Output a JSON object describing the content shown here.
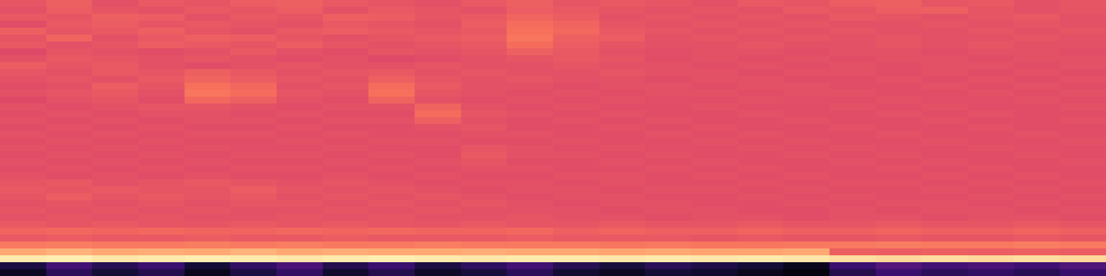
{
  "chart_data": {
    "type": "heatmap",
    "color": "magma",
    "tick_labels": false,
    "zlim": [
      0,
      1
    ],
    "cells": [
      [
        0.63,
        0.66,
        0.62,
        0.64,
        0.63,
        0.65,
        0.66,
        0.64,
        0.63,
        0.62,
        0.64,
        0.66,
        0.63,
        0.64,
        0.63,
        0.62,
        0.64,
        0.63,
        0.65,
        0.66,
        0.63,
        0.64,
        0.62,
        0.63
      ],
      [
        0.62,
        0.65,
        0.63,
        0.62,
        0.64,
        0.63,
        0.65,
        0.62,
        0.64,
        0.63,
        0.62,
        0.65,
        0.64,
        0.63,
        0.62,
        0.63,
        0.62,
        0.64,
        0.63,
        0.65,
        0.66,
        0.63,
        0.62,
        0.63
      ],
      [
        0.64,
        0.63,
        0.66,
        0.65,
        0.62,
        0.64,
        0.63,
        0.66,
        0.65,
        0.63,
        0.64,
        0.67,
        0.65,
        0.62,
        0.63,
        0.62,
        0.63,
        0.62,
        0.64,
        0.63,
        0.62,
        0.63,
        0.64,
        0.62
      ],
      [
        0.61,
        0.64,
        0.65,
        0.63,
        0.64,
        0.63,
        0.62,
        0.64,
        0.63,
        0.62,
        0.65,
        0.69,
        0.67,
        0.63,
        0.62,
        0.63,
        0.62,
        0.63,
        0.62,
        0.62,
        0.63,
        0.62,
        0.63,
        0.62
      ],
      [
        0.66,
        0.63,
        0.64,
        0.66,
        0.63,
        0.62,
        0.64,
        0.65,
        0.64,
        0.63,
        0.64,
        0.7,
        0.68,
        0.64,
        0.63,
        0.62,
        0.63,
        0.62,
        0.63,
        0.62,
        0.62,
        0.63,
        0.62,
        0.63
      ],
      [
        0.63,
        0.67,
        0.62,
        0.64,
        0.66,
        0.65,
        0.63,
        0.62,
        0.63,
        0.64,
        0.65,
        0.71,
        0.66,
        0.65,
        0.62,
        0.63,
        0.62,
        0.63,
        0.62,
        0.63,
        0.62,
        0.62,
        0.63,
        0.62
      ],
      [
        0.64,
        0.62,
        0.63,
        0.65,
        0.64,
        0.63,
        0.65,
        0.63,
        0.62,
        0.63,
        0.64,
        0.69,
        0.65,
        0.63,
        0.62,
        0.62,
        0.63,
        0.62,
        0.62,
        0.63,
        0.62,
        0.63,
        0.62,
        0.62
      ],
      [
        0.6,
        0.63,
        0.62,
        0.61,
        0.62,
        0.64,
        0.62,
        0.61,
        0.63,
        0.62,
        0.63,
        0.66,
        0.64,
        0.62,
        0.61,
        0.62,
        0.62,
        0.61,
        0.62,
        0.62,
        0.61,
        0.62,
        0.62,
        0.61
      ],
      [
        0.62,
        0.64,
        0.63,
        0.62,
        0.63,
        0.62,
        0.61,
        0.62,
        0.6,
        0.61,
        0.62,
        0.63,
        0.64,
        0.63,
        0.61,
        0.62,
        0.61,
        0.62,
        0.61,
        0.62,
        0.62,
        0.61,
        0.62,
        0.62
      ],
      [
        0.65,
        0.63,
        0.64,
        0.62,
        0.61,
        0.62,
        0.63,
        0.62,
        0.62,
        0.63,
        0.62,
        0.62,
        0.63,
        0.62,
        0.62,
        0.61,
        0.62,
        0.61,
        0.62,
        0.61,
        0.62,
        0.62,
        0.61,
        0.62
      ],
      [
        0.63,
        0.62,
        0.64,
        0.63,
        0.66,
        0.64,
        0.62,
        0.63,
        0.64,
        0.62,
        0.63,
        0.62,
        0.62,
        0.63,
        0.62,
        0.62,
        0.61,
        0.62,
        0.62,
        0.61,
        0.62,
        0.61,
        0.62,
        0.61
      ],
      [
        0.62,
        0.63,
        0.62,
        0.64,
        0.67,
        0.65,
        0.63,
        0.62,
        0.66,
        0.63,
        0.62,
        0.63,
        0.62,
        0.62,
        0.61,
        0.62,
        0.62,
        0.61,
        0.61,
        0.62,
        0.61,
        0.62,
        0.61,
        0.62
      ],
      [
        0.61,
        0.62,
        0.65,
        0.63,
        0.7,
        0.68,
        0.62,
        0.63,
        0.69,
        0.64,
        0.62,
        0.62,
        0.61,
        0.62,
        0.62,
        0.61,
        0.62,
        0.62,
        0.61,
        0.61,
        0.62,
        0.61,
        0.62,
        0.61
      ],
      [
        0.62,
        0.63,
        0.64,
        0.62,
        0.71,
        0.69,
        0.63,
        0.62,
        0.7,
        0.63,
        0.62,
        0.61,
        0.62,
        0.61,
        0.62,
        0.62,
        0.61,
        0.62,
        0.62,
        0.61,
        0.61,
        0.62,
        0.61,
        0.62
      ],
      [
        0.6,
        0.62,
        0.63,
        0.61,
        0.68,
        0.66,
        0.62,
        0.61,
        0.67,
        0.62,
        0.61,
        0.62,
        0.61,
        0.62,
        0.61,
        0.61,
        0.62,
        0.61,
        0.61,
        0.62,
        0.61,
        0.61,
        0.62,
        0.61
      ],
      [
        0.62,
        0.61,
        0.62,
        0.63,
        0.63,
        0.62,
        0.61,
        0.62,
        0.62,
        0.67,
        0.62,
        0.61,
        0.62,
        0.61,
        0.61,
        0.62,
        0.61,
        0.61,
        0.62,
        0.61,
        0.62,
        0.61,
        0.61,
        0.62
      ],
      [
        0.61,
        0.62,
        0.61,
        0.62,
        0.62,
        0.61,
        0.62,
        0.61,
        0.61,
        0.69,
        0.63,
        0.62,
        0.61,
        0.62,
        0.61,
        0.61,
        0.62,
        0.61,
        0.61,
        0.62,
        0.61,
        0.62,
        0.61,
        0.61
      ],
      [
        0.62,
        0.61,
        0.62,
        0.61,
        0.62,
        0.62,
        0.61,
        0.62,
        0.62,
        0.66,
        0.62,
        0.61,
        0.62,
        0.61,
        0.62,
        0.61,
        0.61,
        0.62,
        0.61,
        0.61,
        0.62,
        0.61,
        0.61,
        0.62
      ],
      [
        0.61,
        0.62,
        0.61,
        0.62,
        0.61,
        0.61,
        0.62,
        0.61,
        0.61,
        0.62,
        0.63,
        0.61,
        0.61,
        0.62,
        0.61,
        0.62,
        0.61,
        0.61,
        0.62,
        0.61,
        0.61,
        0.62,
        0.61,
        0.61
      ],
      [
        0.62,
        0.61,
        0.62,
        0.61,
        0.62,
        0.62,
        0.61,
        0.62,
        0.61,
        0.61,
        0.62,
        0.62,
        0.61,
        0.61,
        0.62,
        0.61,
        0.62,
        0.61,
        0.61,
        0.62,
        0.61,
        0.61,
        0.62,
        0.61
      ],
      [
        0.61,
        0.62,
        0.61,
        0.62,
        0.61,
        0.61,
        0.62,
        0.61,
        0.62,
        0.62,
        0.61,
        0.61,
        0.62,
        0.61,
        0.61,
        0.62,
        0.61,
        0.62,
        0.61,
        0.61,
        0.62,
        0.61,
        0.61,
        0.62
      ],
      [
        0.62,
        0.61,
        0.62,
        0.61,
        0.62,
        0.61,
        0.61,
        0.62,
        0.61,
        0.61,
        0.63,
        0.62,
        0.61,
        0.62,
        0.61,
        0.61,
        0.62,
        0.61,
        0.62,
        0.61,
        0.61,
        0.62,
        0.61,
        0.61
      ],
      [
        0.61,
        0.62,
        0.61,
        0.62,
        0.61,
        0.62,
        0.62,
        0.61,
        0.62,
        0.61,
        0.64,
        0.62,
        0.62,
        0.61,
        0.62,
        0.61,
        0.61,
        0.62,
        0.61,
        0.62,
        0.61,
        0.61,
        0.62,
        0.61
      ],
      [
        0.62,
        0.61,
        0.62,
        0.61,
        0.62,
        0.61,
        0.61,
        0.62,
        0.61,
        0.62,
        0.63,
        0.61,
        0.61,
        0.62,
        0.61,
        0.62,
        0.61,
        0.61,
        0.62,
        0.61,
        0.62,
        0.61,
        0.61,
        0.62
      ],
      [
        0.61,
        0.62,
        0.61,
        0.62,
        0.61,
        0.62,
        0.62,
        0.61,
        0.62,
        0.61,
        0.62,
        0.62,
        0.61,
        0.61,
        0.62,
        0.61,
        0.62,
        0.61,
        0.61,
        0.62,
        0.61,
        0.62,
        0.61,
        0.61
      ],
      [
        0.62,
        0.61,
        0.62,
        0.61,
        0.62,
        0.61,
        0.61,
        0.62,
        0.61,
        0.62,
        0.61,
        0.61,
        0.62,
        0.62,
        0.61,
        0.62,
        0.61,
        0.62,
        0.61,
        0.61,
        0.62,
        0.61,
        0.62,
        0.61
      ],
      [
        0.63,
        0.64,
        0.62,
        0.63,
        0.64,
        0.63,
        0.62,
        0.63,
        0.62,
        0.61,
        0.62,
        0.62,
        0.61,
        0.62,
        0.61,
        0.61,
        0.62,
        0.61,
        0.62,
        0.62,
        0.61,
        0.62,
        0.61,
        0.62
      ],
      [
        0.64,
        0.63,
        0.64,
        0.63,
        0.63,
        0.65,
        0.63,
        0.62,
        0.63,
        0.62,
        0.61,
        0.62,
        0.62,
        0.61,
        0.62,
        0.62,
        0.61,
        0.62,
        0.61,
        0.61,
        0.62,
        0.61,
        0.62,
        0.61
      ],
      [
        0.63,
        0.65,
        0.63,
        0.64,
        0.63,
        0.64,
        0.62,
        0.63,
        0.62,
        0.63,
        0.62,
        0.61,
        0.62,
        0.62,
        0.61,
        0.61,
        0.62,
        0.61,
        0.62,
        0.61,
        0.61,
        0.62,
        0.61,
        0.62
      ],
      [
        0.62,
        0.63,
        0.62,
        0.63,
        0.62,
        0.63,
        0.63,
        0.62,
        0.63,
        0.62,
        0.63,
        0.62,
        0.61,
        0.62,
        0.62,
        0.61,
        0.61,
        0.62,
        0.61,
        0.62,
        0.62,
        0.61,
        0.62,
        0.61
      ],
      [
        0.63,
        0.62,
        0.63,
        0.62,
        0.63,
        0.62,
        0.62,
        0.63,
        0.62,
        0.63,
        0.62,
        0.62,
        0.62,
        0.61,
        0.62,
        0.62,
        0.61,
        0.61,
        0.62,
        0.61,
        0.62,
        0.62,
        0.61,
        0.62
      ],
      [
        0.62,
        0.63,
        0.62,
        0.63,
        0.62,
        0.62,
        0.63,
        0.62,
        0.63,
        0.62,
        0.62,
        0.63,
        0.62,
        0.62,
        0.61,
        0.62,
        0.62,
        0.61,
        0.62,
        0.62,
        0.61,
        0.62,
        0.62,
        0.61
      ],
      [
        0.64,
        0.63,
        0.64,
        0.63,
        0.63,
        0.64,
        0.63,
        0.64,
        0.63,
        0.63,
        0.64,
        0.63,
        0.63,
        0.64,
        0.63,
        0.63,
        0.64,
        0.63,
        0.63,
        0.64,
        0.63,
        0.63,
        0.64,
        0.63
      ],
      [
        0.67,
        0.68,
        0.67,
        0.68,
        0.67,
        0.67,
        0.68,
        0.67,
        0.68,
        0.67,
        0.67,
        0.68,
        0.66,
        0.67,
        0.66,
        0.66,
        0.67,
        0.66,
        0.66,
        0.67,
        0.66,
        0.66,
        0.67,
        0.66
      ],
      [
        0.64,
        0.65,
        0.64,
        0.64,
        0.65,
        0.64,
        0.64,
        0.65,
        0.64,
        0.64,
        0.64,
        0.65,
        0.64,
        0.64,
        0.64,
        0.63,
        0.64,
        0.63,
        0.63,
        0.64,
        0.63,
        0.63,
        0.64,
        0.63
      ],
      [
        0.72,
        0.73,
        0.72,
        0.72,
        0.73,
        0.72,
        0.73,
        0.72,
        0.72,
        0.73,
        0.72,
        0.72,
        0.72,
        0.71,
        0.72,
        0.71,
        0.71,
        0.72,
        0.72,
        0.73,
        0.72,
        0.72,
        0.73,
        0.72
      ],
      [
        0.82,
        0.84,
        0.82,
        0.83,
        0.82,
        0.84,
        0.82,
        0.83,
        0.82,
        0.82,
        0.83,
        0.82,
        0.82,
        0.81,
        0.82,
        0.81,
        0.81,
        0.82,
        0.66,
        0.65,
        0.66,
        0.65,
        0.66,
        0.65
      ],
      [
        0.96,
        0.97,
        0.95,
        0.96,
        0.97,
        0.96,
        0.95,
        0.96,
        0.97,
        0.96,
        0.95,
        0.96,
        0.96,
        0.95,
        0.96,
        0.95,
        0.96,
        0.95,
        0.93,
        0.92,
        0.93,
        0.92,
        0.93,
        0.92
      ],
      [
        0.12,
        0.22,
        0.15,
        0.2,
        0.1,
        0.18,
        0.24,
        0.14,
        0.2,
        0.12,
        0.17,
        0.22,
        0.15,
        0.11,
        0.16,
        0.13,
        0.1,
        0.05,
        0.2,
        0.26,
        0.22,
        0.24,
        0.21,
        0.25
      ],
      [
        0.06,
        0.16,
        0.1,
        0.14,
        0.05,
        0.12,
        0.18,
        0.08,
        0.14,
        0.07,
        0.11,
        0.16,
        0.09,
        0.06,
        0.1,
        0.08,
        0.05,
        0.02,
        0.14,
        0.2,
        0.16,
        0.18,
        0.15,
        0.19
      ]
    ]
  }
}
